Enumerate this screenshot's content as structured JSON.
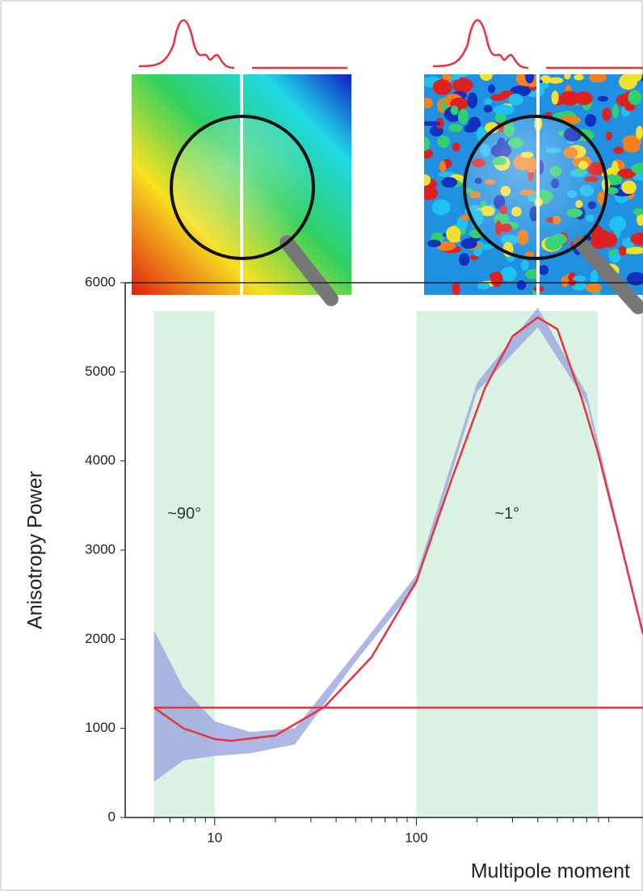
{
  "chart_data": {
    "type": "line",
    "y_label": "Anisotropy Power",
    "x_label": "Multipole moment",
    "log_x": true,
    "xlim": [
      3.6,
      1330
    ],
    "ylim": [
      0,
      6000
    ],
    "xticks": [
      10,
      100
    ],
    "xminorticks": [
      5,
      6,
      7,
      8,
      9,
      20,
      30,
      40,
      50,
      60,
      70,
      80,
      90,
      200,
      300,
      400,
      500,
      600,
      700,
      800,
      900
    ],
    "yticks": [
      0,
      1000,
      2000,
      3000,
      4000,
      5000,
      6000
    ],
    "series": [
      {
        "color": "#e8333c",
        "x": [
          5,
          7,
          10,
          12,
          20,
          35,
          60,
          100,
          150,
          219,
          300,
          400,
          500,
          661,
          794,
          1000,
          1330
        ],
        "values": [
          1233,
          1000,
          880,
          860,
          920,
          1240,
          1800,
          2650,
          3800,
          4820,
          5400,
          5610,
          5480,
          4700,
          4100,
          3200,
          2060
        ]
      },
      {
        "color": "#e8333c",
        "x": [
          5,
          1330
        ],
        "values": [
          1233,
          1233
        ]
      }
    ],
    "band": {
      "color": "#9aa6e0",
      "x": [
        5,
        7,
        10,
        15,
        25,
        50,
        100,
        200,
        400,
        700,
        1330
      ],
      "upper": [
        2100,
        1450,
        1080,
        960,
        1000,
        1850,
        2720,
        4880,
        5720,
        4750,
        2080
      ],
      "lower": [
        400,
        640,
        690,
        720,
        820,
        1750,
        2600,
        4780,
        5500,
        4650,
        2040
      ]
    },
    "regions": [
      {
        "x": [
          5,
          10
        ],
        "label": "~90°",
        "label_y": 3400
      },
      {
        "x": [
          100,
          794
        ],
        "label": "~1°",
        "label_y": 3400
      }
    ],
    "region_color": "#d9f2e4"
  }
}
